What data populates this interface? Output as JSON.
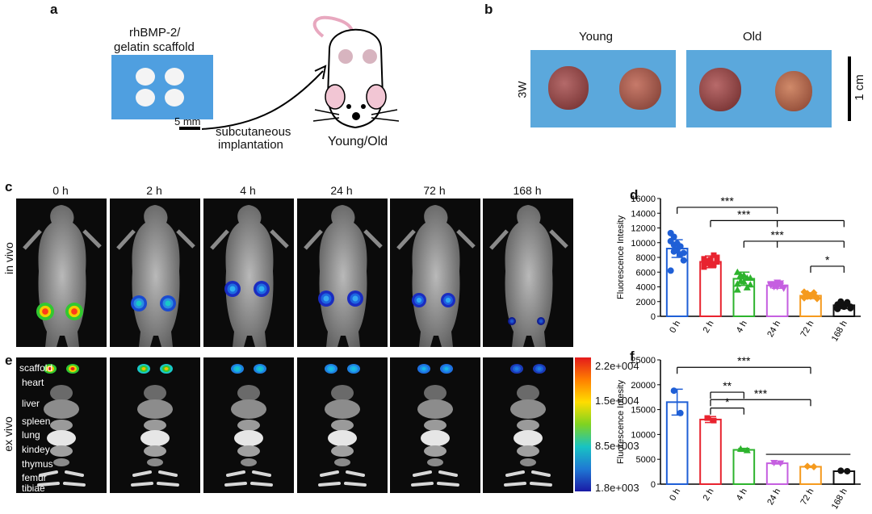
{
  "panels": {
    "a": "a",
    "b": "b",
    "c": "c",
    "d": "d",
    "e": "e",
    "f": "f"
  },
  "panel_a": {
    "scaffold_label_1": "rhBMP-2/",
    "scaffold_label_2": "gelatin scaffold",
    "scale_text": "5 mm",
    "arrow_label_1": "subcutaneous",
    "arrow_label_2": "implantation",
    "mouse_label": "Young/Old"
  },
  "panel_b": {
    "young": "Young",
    "old": "Old",
    "timepoint": "3W",
    "scale": "1 cm"
  },
  "panel_c": {
    "row_label": "in vivo",
    "timepoints": [
      "0 h",
      "2 h",
      "4 h",
      "24 h",
      "72 h",
      "168 h"
    ]
  },
  "panel_e": {
    "row_label": "ex vivo",
    "organs": [
      "scaffold",
      "heart",
      "liver",
      "spleen",
      "lung",
      "kindey",
      "thymus",
      "femur",
      "tibiae"
    ],
    "colorbar_ticks": [
      "2.2e+004",
      "1.5e+004",
      "8.5e+003",
      "1.8e+003"
    ]
  },
  "chart_data": [
    {
      "type": "bar",
      "title": "d",
      "ylabel": "Fluorescence Intesity",
      "categories": [
        "0 h",
        "2 h",
        "4 h",
        "24 h",
        "72 h",
        "168 h"
      ],
      "values": [
        9200,
        7400,
        5100,
        4200,
        2800,
        1500
      ],
      "errors": [
        1200,
        800,
        900,
        400,
        400,
        450
      ],
      "colors": [
        "#1f5fd6",
        "#e8232f",
        "#2db32d",
        "#c55fe0",
        "#f59a1e",
        "#111111"
      ],
      "ylim": [
        0,
        16000
      ],
      "yticks": [
        0,
        2000,
        4000,
        6000,
        8000,
        10000,
        12000,
        14000,
        16000
      ],
      "points": [
        [
          10200,
          9700,
          9900,
          8400,
          7600,
          6200,
          10800,
          9000,
          9500,
          8600,
          11300,
          8800
        ],
        [
          7800,
          7200,
          6900,
          7000,
          8000,
          6700,
          7500,
          7700,
          8300,
          7400,
          7100,
          7300
        ],
        [
          6000,
          5600,
          4700,
          3900,
          5200,
          4400,
          4800,
          5600,
          5200,
          4300,
          3600,
          5400
        ],
        [
          4200,
          4400,
          4000,
          4500,
          3900,
          4300,
          4100,
          4600,
          4200,
          3800,
          4400,
          4000
        ],
        [
          2500,
          3000,
          2700,
          3200,
          2400,
          2600,
          3100,
          2800,
          2900,
          2500,
          3300,
          2700
        ],
        [
          1200,
          2000,
          1300,
          1700,
          1100,
          1600,
          1400,
          1500,
          1900,
          1300,
          1000,
          1800
        ]
      ],
      "significance": [
        "***",
        "***",
        "***",
        "*"
      ]
    },
    {
      "type": "bar",
      "title": "f",
      "ylabel": "Fluorescence Intesity",
      "categories": [
        "0 h",
        "2 h",
        "4 h",
        "24 h",
        "72 h",
        "168 h"
      ],
      "values": [
        16500,
        13000,
        6900,
        4200,
        3500,
        2600
      ],
      "errors": [
        2600,
        600,
        300,
        150,
        150,
        100
      ],
      "colors": [
        "#1f5fd6",
        "#e8232f",
        "#2db32d",
        "#c55fe0",
        "#f59a1e",
        "#111111"
      ],
      "ylim": [
        0,
        25000
      ],
      "yticks": [
        0,
        5000,
        10000,
        15000,
        20000,
        25000
      ],
      "points": [
        [
          18800,
          14300
        ],
        [
          13300,
          12800
        ],
        [
          7100,
          6800
        ],
        [
          4300,
          4200
        ],
        [
          3600,
          3500
        ],
        [
          2700,
          2600
        ]
      ],
      "significance": [
        "***",
        "**",
        "***",
        "*"
      ]
    }
  ]
}
